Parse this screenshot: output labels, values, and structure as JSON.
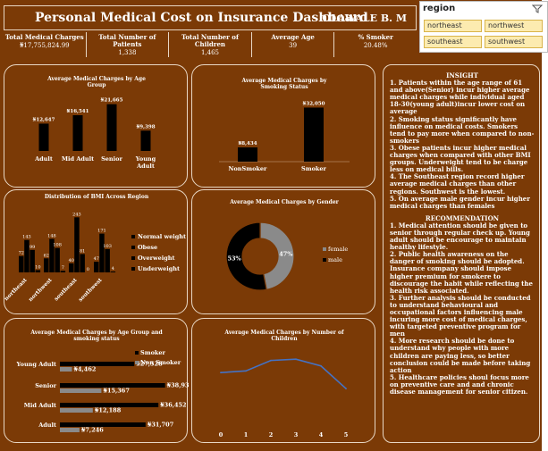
{
  "header": {
    "title": "Personal Medical Cost on Insurance Dashboard",
    "author": "OLAWALE B. M"
  },
  "kpis": [
    {
      "label": "Total Medical Charges",
      "value": "₦17,755,824.99"
    },
    {
      "label": "Total Number of Patients",
      "value": "1,338"
    },
    {
      "label": "Total Number of Children",
      "value": "1,465"
    },
    {
      "label": "Average Age",
      "value": "39"
    },
    {
      "label": "% Smoker",
      "value": "20.48%"
    }
  ],
  "slicer": {
    "title": "region",
    "items": [
      "northeast",
      "northwest",
      "southeast",
      "southwest"
    ]
  },
  "chart_data": [
    {
      "type": "bar",
      "title": "Average Medical Charges by Age Group",
      "categories": [
        "Adult",
        "Mid Adult",
        "Senior",
        "Young Adult"
      ],
      "values": [
        12647,
        16541,
        21665,
        9398
      ],
      "labels": [
        "₦12,647",
        "₦16,541",
        "₦21,665",
        "₦9,398"
      ],
      "ylim": [
        0,
        24000
      ]
    },
    {
      "type": "bar",
      "title": "Average Medical Charges by Smoking Status",
      "categories": [
        "NonSmoker",
        "Smoker"
      ],
      "values": [
        8434,
        32050
      ],
      "labels": [
        "₦8,434",
        "₦32,050"
      ],
      "ylim": [
        0,
        36000
      ]
    },
    {
      "type": "bar",
      "title": "Distribution of BMI Across Region",
      "categories": [
        "northeast",
        "northwest",
        "southeast",
        "southwest"
      ],
      "series": [
        {
          "name": "Normal weight",
          "values": [
            72,
            62,
            40,
            47
          ]
        },
        {
          "name": "Obese",
          "values": [
            143,
            148,
            243,
            171
          ]
        },
        {
          "name": "Overweight",
          "values": [
            99,
            108,
            81,
            103
          ]
        },
        {
          "name": "Underweight",
          "values": [
            10,
            7,
            0,
            4
          ]
        }
      ],
      "legend": "right",
      "ylim": [
        0,
        260
      ]
    },
    {
      "type": "pie",
      "title": "Average Medical Charges by Gender",
      "categories": [
        "female",
        "male"
      ],
      "values": [
        47,
        53
      ],
      "labels": [
        "47%",
        "53%"
      ],
      "legend": "right"
    },
    {
      "type": "bar",
      "title": "Average Medical Charges by Age Group and smoking status",
      "categories": [
        "Young Adult",
        "Senior",
        "Mid Adult",
        "Adult"
      ],
      "series": [
        {
          "name": "Smoker",
          "values": [
            27528,
            38930,
            36452,
            31707
          ],
          "labels": [
            "₦27,528",
            "₦38,930",
            "₦36,452",
            "₦31,707"
          ]
        },
        {
          "name": "Non Smoker",
          "values": [
            4462,
            15367,
            12188,
            7246
          ],
          "labels": [
            "₦4,462",
            "₦15,367",
            "₦12,188",
            "₦7,246"
          ]
        }
      ],
      "legend": "top-right",
      "xlim": [
        0,
        45000
      ]
    },
    {
      "type": "line",
      "title": "Average Medical Charges by Number of Children",
      "x": [
        0,
        1,
        2,
        3,
        4,
        5
      ],
      "values": [
        12366,
        12731,
        15074,
        15356,
        13851,
        8786
      ],
      "ylim": [
        0,
        18000
      ]
    }
  ],
  "insight": {
    "title": "INSIGHT",
    "items": [
      "1. Patients within the age range of 61 and above(Senior) incur higher average medical charges while individual aged 18-30(young adult)incur lower cost on average",
      "2. Smoking status significantly have influence on medical costs. Smokers tend to pay more  when compared to non-smokers",
      "3. Obese patients incur higher medical charges when compared with other BMI  groups. Underweight tend to be charge less on medical bills.",
      "4. The Southeast region record higher average medical charges than other regions. Southwest is the lowest.",
      "5. On average male gender incur higher medical charges than females"
    ],
    "rec_title": "RECOMMENDATION",
    "recs": [
      "1. Medical attention should be given to senior through regular check up. Young adult should be encourage to maintain healthy lifestyle.",
      "2. Public health awareness on the danger of smoking should be adopted. Insurance company should impose higher premium for smokere to discourage the habit while reflecting the health risk associated.",
      "3. Further analysis should be conducted to understand behavioural and occupational factors influencing male incuring more cost of medical charges, with targeted preventive program for men",
      "4. More research should be done to understand why people with more children are paying less, so better conclusion could be made before taking action",
      "5. Healthcare policies shoul focus more on preventive care and and chronic disease management for senior citizen."
    ]
  },
  "colors": {
    "background": "#7b3a06",
    "primary": "#000000",
    "secondary": "#8a8a8a",
    "line": "#4472c4",
    "slicer_btn": "#fcebb0"
  }
}
